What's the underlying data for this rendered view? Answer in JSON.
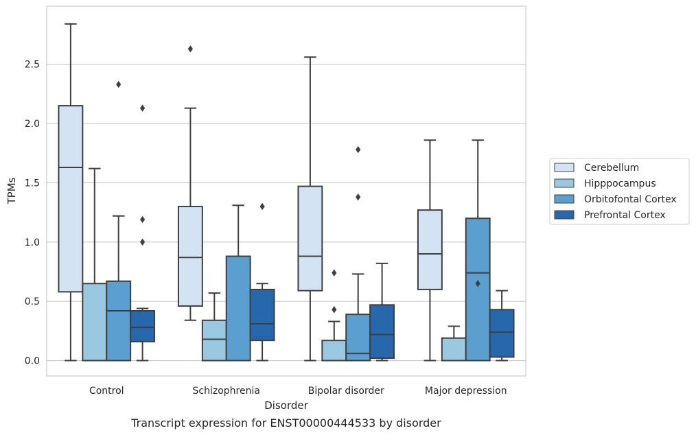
{
  "chart_data": {
    "type": "box",
    "xlabel": "Disorder",
    "ylabel": "TPMs",
    "caption": "Transcript expression for ENST00000444533 by disorder",
    "ylim": [
      -0.13,
      2.99
    ],
    "yticks": [
      "0.0",
      "0.5",
      "1.0",
      "1.5",
      "2.0",
      "2.5"
    ],
    "grid": "horizontal",
    "legend_position": "right",
    "categories": [
      "Control",
      "Schizophrenia",
      "Bipolar disorder",
      "Major depression"
    ],
    "series": [
      {
        "name": "Cerebellum",
        "color": "#d3e3f3",
        "boxes": [
          {
            "whislo": 0.0,
            "q1": 0.58,
            "med": 1.63,
            "q3": 2.15,
            "whishi": 2.84,
            "fliers": []
          },
          {
            "whislo": 0.34,
            "q1": 0.46,
            "med": 0.87,
            "q3": 1.3,
            "whishi": 2.13,
            "fliers": [
              2.63
            ]
          },
          {
            "whislo": 0.0,
            "q1": 0.59,
            "med": 0.88,
            "q3": 1.47,
            "whishi": 2.56,
            "fliers": []
          },
          {
            "whislo": 0.0,
            "q1": 0.6,
            "med": 0.9,
            "q3": 1.27,
            "whishi": 1.86,
            "fliers": []
          }
        ]
      },
      {
        "name": "Hipppocampus",
        "color": "#9ac8e0",
        "boxes": [
          {
            "whislo": 0.0,
            "q1": 0.0,
            "med": 0.0,
            "q3": 0.65,
            "whishi": 1.62,
            "fliers": []
          },
          {
            "whislo": 0.0,
            "q1": 0.0,
            "med": 0.18,
            "q3": 0.34,
            "whishi": 0.57,
            "fliers": []
          },
          {
            "whislo": 0.0,
            "q1": 0.0,
            "med": 0.0,
            "q3": 0.17,
            "whishi": 0.33,
            "fliers": [
              0.43,
              0.74
            ]
          },
          {
            "whislo": 0.0,
            "q1": 0.0,
            "med": 0.0,
            "q3": 0.19,
            "whishi": 0.29,
            "fliers": []
          }
        ]
      },
      {
        "name": "Orbitofontal Cortex",
        "color": "#5a9fcf",
        "boxes": [
          {
            "whislo": 0.0,
            "q1": 0.0,
            "med": 0.42,
            "q3": 0.67,
            "whishi": 1.22,
            "fliers": [
              2.33
            ]
          },
          {
            "whislo": 0.0,
            "q1": 0.0,
            "med": 0.0,
            "q3": 0.88,
            "whishi": 1.31,
            "fliers": []
          },
          {
            "whislo": 0.0,
            "q1": 0.0,
            "med": 0.06,
            "q3": 0.39,
            "whishi": 0.73,
            "fliers": [
              1.38,
              1.78
            ]
          },
          {
            "whislo": 0.0,
            "q1": 0.0,
            "med": 0.74,
            "q3": 1.2,
            "whishi": 1.86,
            "fliers": [
              0.65
            ]
          }
        ]
      },
      {
        "name": "Prefrontal Cortex",
        "color": "#2767ab",
        "boxes": [
          {
            "whislo": 0.0,
            "q1": 0.16,
            "med": 0.28,
            "q3": 0.42,
            "whishi": 0.44,
            "fliers": [
              1.0,
              1.19,
              2.13
            ]
          },
          {
            "whislo": 0.0,
            "q1": 0.17,
            "med": 0.31,
            "q3": 0.6,
            "whishi": 0.65,
            "fliers": [
              1.3
            ]
          },
          {
            "whislo": 0.0,
            "q1": 0.02,
            "med": 0.22,
            "q3": 0.47,
            "whishi": 0.82,
            "fliers": []
          },
          {
            "whislo": 0.0,
            "q1": 0.03,
            "med": 0.24,
            "q3": 0.43,
            "whishi": 0.59,
            "fliers": []
          }
        ]
      }
    ]
  }
}
